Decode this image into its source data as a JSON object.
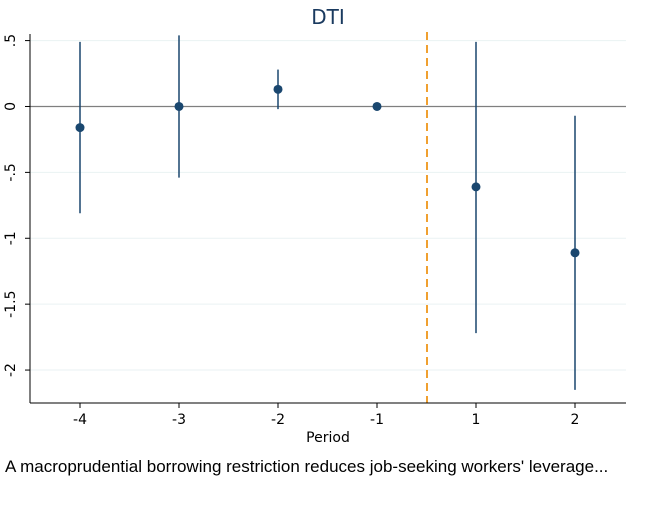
{
  "chart_data": {
    "type": "scatter",
    "title": "DTI",
    "xlabel": "Period",
    "ylabel": "",
    "x": [
      -4,
      -3,
      -2,
      -1,
      1,
      2
    ],
    "x_tick_labels": [
      "-4",
      "-3",
      "-2",
      "-1",
      "1",
      "2"
    ],
    "y_ticks": [
      0.5,
      0,
      -0.5,
      -1,
      -1.5,
      -2
    ],
    "y_tick_labels": [
      ".5",
      "0",
      "-.5",
      "-1",
      "-1.5",
      "-2"
    ],
    "ylim": [
      -2.25,
      0.55
    ],
    "grid": true,
    "series": [
      {
        "estimate": [
          -0.16,
          0.0,
          0.13,
          0.0,
          -0.61,
          -1.11
        ],
        "ci_lower": [
          -0.81,
          -0.54,
          -0.02,
          0.0,
          -1.72,
          -2.15
        ],
        "ci_upper": [
          0.49,
          0.54,
          0.28,
          0.0,
          0.49,
          -0.07
        ]
      }
    ],
    "reference_lines": {
      "horizontal_zero": true,
      "vertical_dashed_between": [
        "-1",
        "1"
      ]
    },
    "colors": {
      "points": "#1a476f",
      "zero_line": "#7f7f7f",
      "vertical_line": "#f0a030",
      "grid": "#eaf2f3"
    }
  },
  "caption": "A macroprudential borrowing restriction reduces job-seeking workers' leverage..."
}
